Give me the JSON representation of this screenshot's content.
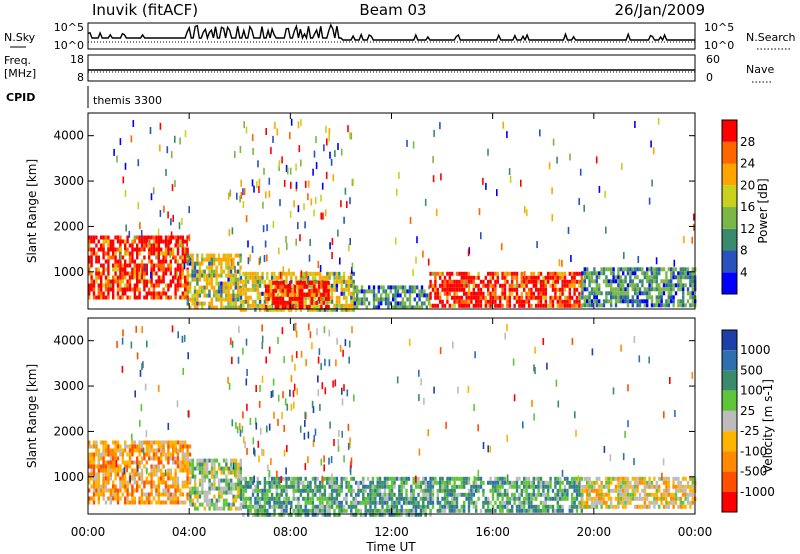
{
  "header": {
    "station": "Inuvik (fitACF)",
    "beam": "Beam 03",
    "date": "26/Jan/2009"
  },
  "param_labels": {
    "nsky": "N.Sky",
    "nsearch": "N.Search",
    "freq_line1": "Freq.",
    "freq_line2": "[MHz]",
    "nave": "Nave",
    "cpid": "CPID",
    "cpid_value": "themis 3300"
  },
  "param_ticks": {
    "nsky_top": "10^5",
    "nsky_bottom": "10^0",
    "nsearch_top": "10^5",
    "nsearch_bottom": "10^0",
    "freq_top": "18",
    "freq_bottom": "8",
    "nave_top": "60",
    "nave_bottom": "0"
  },
  "colors": {
    "power": [
      "#0000ff",
      "#2a52be",
      "#3a8a6e",
      "#7ab648",
      "#c8d21e",
      "#ffa500",
      "#ff6600",
      "#ff0000"
    ],
    "velocity": [
      "#1e3fa8",
      "#2e6fb0",
      "#3a8a6e",
      "#5fc43a",
      "#bcbcbc",
      "#ffb400",
      "#ff8a00",
      "#ff5000",
      "#ff0000"
    ]
  },
  "chart_data": [
    {
      "type": "heatmap",
      "name": "power",
      "x_range": [
        "00:00",
        "24:00"
      ],
      "xlabel": "Time UT",
      "x_ticks": [
        "00:00",
        "04:00",
        "08:00",
        "12:00",
        "16:00",
        "20:00",
        "00:00"
      ],
      "ylabel": "Slant Range [km]",
      "ylim": [
        180,
        4500
      ],
      "y_ticks": [
        1000,
        2000,
        3000,
        4000
      ],
      "colorbar": {
        "label": "Power [dB]",
        "range": [
          0,
          32
        ],
        "ticks": [
          4,
          8,
          12,
          16,
          20,
          24,
          28
        ]
      },
      "regions": [
        {
          "t0": 0.0,
          "t1": 3.9,
          "r0": 400,
          "r1": 1800,
          "level": 8
        },
        {
          "t0": 3.9,
          "t1": 6.0,
          "r0": 250,
          "r1": 1400,
          "level": 5
        },
        {
          "t0": 6.0,
          "t1": 10.5,
          "r0": 200,
          "r1": 1000,
          "level": 5
        },
        {
          "t0": 7.0,
          "t1": 9.5,
          "r0": 200,
          "r1": 800,
          "level": 8
        },
        {
          "t0": 10.5,
          "t1": 13.5,
          "r0": 200,
          "r1": 700,
          "level": 3
        },
        {
          "t0": 13.5,
          "t1": 19.5,
          "r0": 250,
          "r1": 1000,
          "level": 8
        },
        {
          "t0": 19.5,
          "t1": 24.0,
          "r0": 300,
          "r1": 1100,
          "level": 3
        }
      ]
    },
    {
      "type": "heatmap",
      "name": "velocity",
      "x_range": [
        "00:00",
        "24:00"
      ],
      "xlabel": "Time UT",
      "x_ticks": [
        "00:00",
        "04:00",
        "08:00",
        "12:00",
        "16:00",
        "20:00",
        "00:00"
      ],
      "ylabel": "Slant Range [km]",
      "ylim": [
        180,
        4500
      ],
      "y_ticks": [
        1000,
        2000,
        3000,
        4000
      ],
      "colorbar": {
        "label": "Velocity [m s-1]",
        "ticks": [
          "1000",
          "500",
          "100",
          "25",
          "-25",
          "-100",
          "-500",
          "-1000"
        ]
      },
      "regions": [
        {
          "t0": 0.0,
          "t1": 4.0,
          "r0": 400,
          "r1": 1800,
          "level": 6
        },
        {
          "t0": 4.0,
          "t1": 6.0,
          "r0": 300,
          "r1": 1400,
          "level": 4
        },
        {
          "t0": 6.0,
          "t1": 13.5,
          "r0": 200,
          "r1": 1000,
          "level": 3
        },
        {
          "t0": 13.5,
          "t1": 19.5,
          "r0": 250,
          "r1": 1000,
          "level": 3
        },
        {
          "t0": 19.5,
          "t1": 24.0,
          "r0": 300,
          "r1": 1000,
          "level": 5
        }
      ]
    }
  ]
}
